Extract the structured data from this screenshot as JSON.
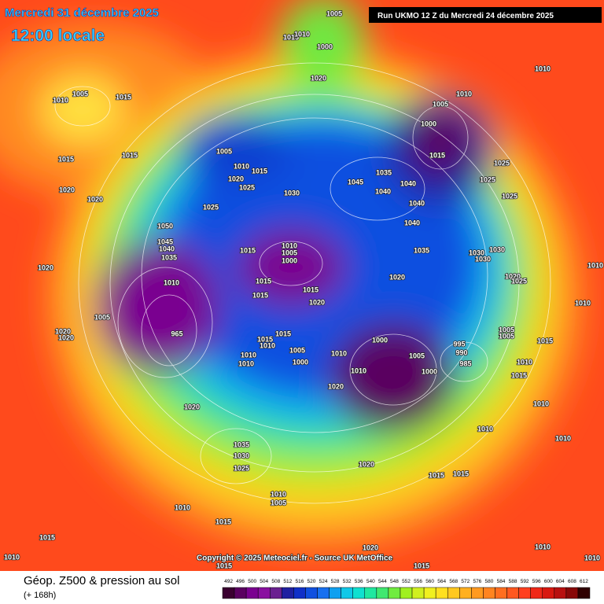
{
  "header": {
    "title": "Mercredi 31 décembre 2025",
    "subtitle": "12:00 locale",
    "run": "Run UKMO 12 Z du Mercredi 24 décembre 2025"
  },
  "footer": {
    "copyright": "Copyright © 2025 Meteociel.fr - Source UK MetOffice",
    "field": "Géop. Z500 & pression au sol",
    "lead": "(+ 168h)"
  },
  "colorbar": {
    "ticks": [
      "492",
      "496",
      "500",
      "504",
      "508",
      "512",
      "516",
      "520",
      "524",
      "528",
      "532",
      "536",
      "540",
      "544",
      "548",
      "552",
      "556",
      "560",
      "564",
      "568",
      "572",
      "576",
      "580",
      "584",
      "588",
      "592",
      "596",
      "600",
      "604",
      "608",
      "612"
    ],
    "colors": [
      "#3a0030",
      "#5a0060",
      "#7a0090",
      "#8a10a0",
      "#6a2090",
      "#2020a0",
      "#1030c8",
      "#1050e0",
      "#1870f0",
      "#10a0f0",
      "#10c8e8",
      "#10e0d0",
      "#20e8a0",
      "#40e870",
      "#70ec40",
      "#a0f020",
      "#d0f020",
      "#f0f020",
      "#ffe020",
      "#ffc820",
      "#ffb020",
      "#ff9a20",
      "#ff8420",
      "#ff6e20",
      "#ff5820",
      "#ff4020",
      "#f02818",
      "#d81810",
      "#b81010",
      "#880808",
      "#300000"
    ]
  },
  "isobar_labels": [
    "1005",
    "1015",
    "1010",
    "1000",
    "1020",
    "1010",
    "1010",
    "1005",
    "1015",
    "1005",
    "1010",
    "1000",
    "1015",
    "1025",
    "1025",
    "1025",
    "1005",
    "1010",
    "1015",
    "1020",
    "1025",
    "1030",
    "1025",
    "1045",
    "1035",
    "1040",
    "1040",
    "1040",
    "1040",
    "1035",
    "1015",
    "1015",
    "1020",
    "1020",
    "1050",
    "1045",
    "1040",
    "1035",
    "1020",
    "1015",
    "1010",
    "1005",
    "1000",
    "1015",
    "1015",
    "1015",
    "1010",
    "1020",
    "1020",
    "1030",
    "1030",
    "1030",
    "1020",
    "1025",
    "1005",
    "965",
    "1015",
    "1015",
    "1010",
    "1010",
    "1005",
    "1000",
    "1010",
    "1010",
    "1010",
    "1000",
    "1005",
    "995",
    "990",
    "985",
    "1000",
    "1005",
    "1005",
    "1015",
    "1010",
    "1015",
    "1020",
    "1010",
    "1020",
    "1035",
    "1030",
    "1025",
    "1020",
    "1015",
    "1015",
    "1010",
    "1005",
    "1010",
    "1015",
    "1015",
    "1020",
    "1015",
    "1015",
    "1010",
    "1010",
    "1010",
    "1010",
    "1010",
    "1010",
    "1020",
    "1020",
    "1010"
  ]
}
